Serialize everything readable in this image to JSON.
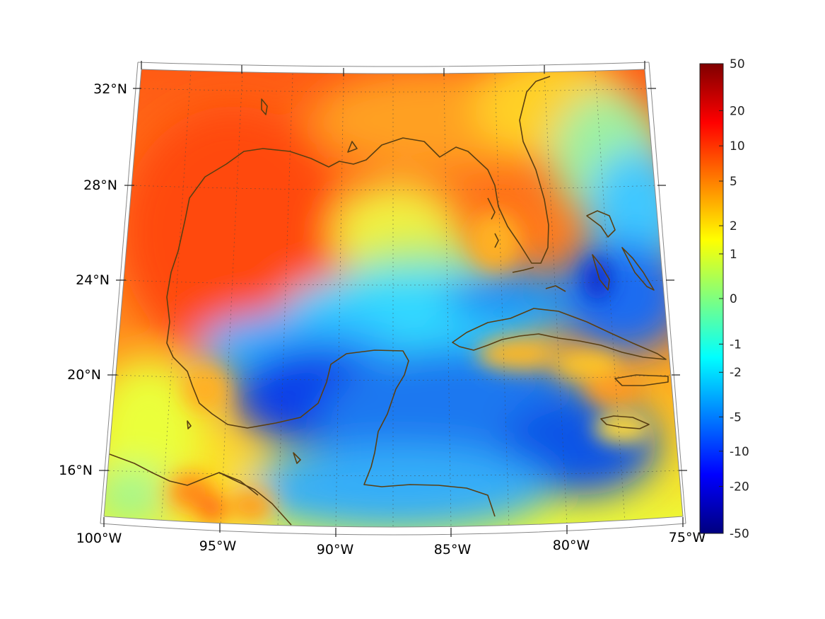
{
  "map": {
    "title": "",
    "projection": "conic",
    "lon_range": [
      -100,
      -75
    ],
    "lat_range": [
      14,
      33
    ],
    "lat_labels": [
      {
        "text": "32°N",
        "lat": 32
      },
      {
        "text": "28°N",
        "lat": 28
      },
      {
        "text": "24°N",
        "lat": 24
      },
      {
        "text": "20°N",
        "lat": 20
      },
      {
        "text": "16°N",
        "lat": 16
      }
    ],
    "lon_labels": [
      {
        "text": "100°W",
        "lon": -100
      },
      {
        "text": "95°W",
        "lon": -95
      },
      {
        "text": "90°W",
        "lon": -90
      },
      {
        "text": "85°W",
        "lon": -85
      },
      {
        "text": "80°W",
        "lon": -80
      },
      {
        "text": "75°W",
        "lon": -75
      }
    ],
    "coastline_color": "#5a3f12",
    "grid": true
  },
  "colorbar": {
    "ticks": [
      {
        "label": "50",
        "frac": 1.0
      },
      {
        "label": "20",
        "frac": 0.9
      },
      {
        "label": "10",
        "frac": 0.825
      },
      {
        "label": "5",
        "frac": 0.75
      },
      {
        "label": "2",
        "frac": 0.655
      },
      {
        "label": "1",
        "frac": 0.595
      },
      {
        "label": "0",
        "frac": 0.5
      },
      {
        "label": "-1",
        "frac": 0.403
      },
      {
        "label": "-2",
        "frac": 0.343
      },
      {
        "label": "-5",
        "frac": 0.248
      },
      {
        "label": "-10",
        "frac": 0.175
      },
      {
        "label": "-20",
        "frac": 0.1
      },
      {
        "label": "-50",
        "frac": 0.0
      }
    ],
    "colormap": [
      "#00007f",
      "#0000ff",
      "#007fff",
      "#00ffff",
      "#7fff7f",
      "#ffff00",
      "#ff7f00",
      "#ff0000",
      "#7f0000"
    ]
  }
}
